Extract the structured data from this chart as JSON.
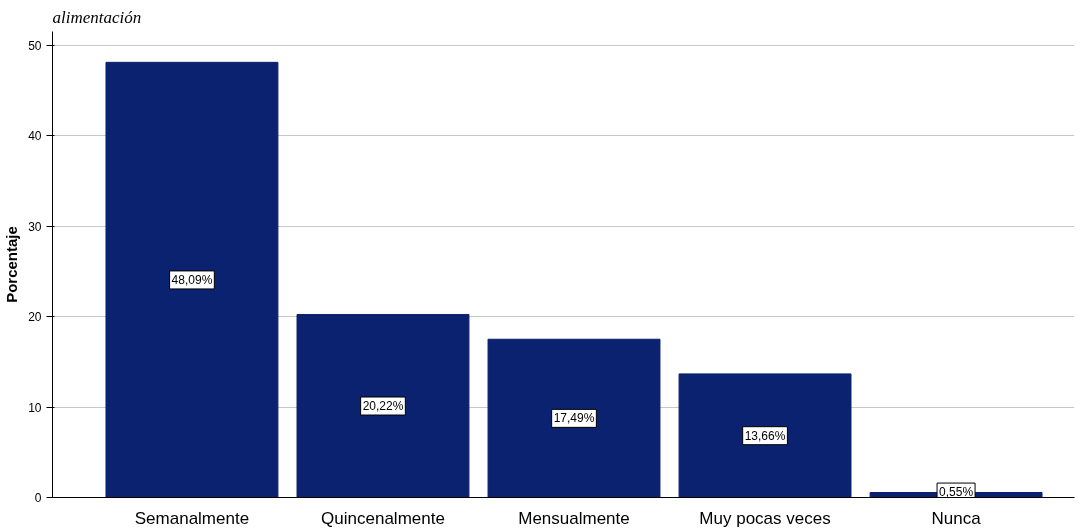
{
  "chart_data": {
    "type": "bar",
    "title": "alimentación",
    "ylabel": "Porcentaje",
    "categories": [
      "Semanalmente",
      "Quincenalmente",
      "Mensualmente",
      "Muy pocas veces",
      "Nunca"
    ],
    "values": [
      48.09,
      20.22,
      17.49,
      13.66,
      0.55
    ],
    "value_labels": [
      "48,09%",
      "20,22%",
      "17,49%",
      "13,66%",
      "0,55%"
    ],
    "color": "#0b2270",
    "ylim": [
      0,
      51.5
    ],
    "yticks": [
      0,
      10,
      20,
      30,
      40,
      50
    ],
    "grid": "y"
  }
}
